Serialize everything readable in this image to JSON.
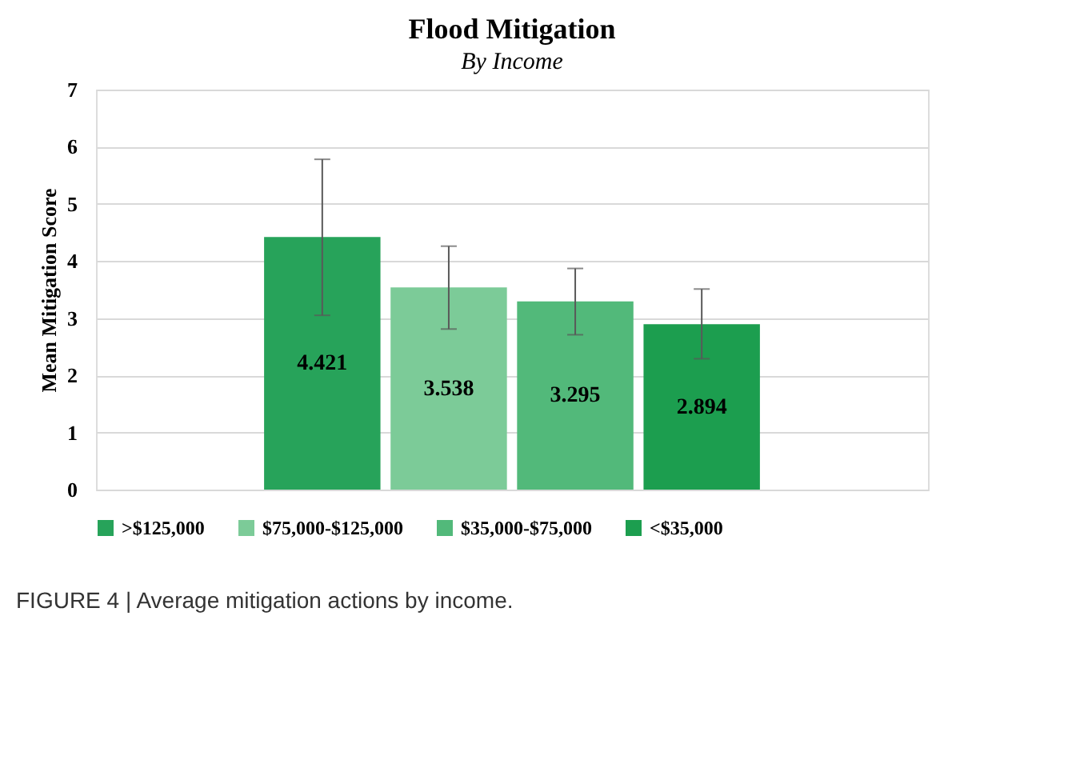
{
  "chart_data": {
    "type": "bar",
    "title": "Flood Mitigation",
    "subtitle": "By Income",
    "ylabel": "Mean Mitigation Score",
    "categories": [
      null
    ],
    "series": [
      {
        "name": ">$125,000",
        "color": "#27a35a",
        "values": [
          4.421
        ],
        "errors": [
          [
            3.05,
            5.78
          ]
        ]
      },
      {
        "name": "$75,000-$125,000",
        "color": "#7ccb98",
        "values": [
          3.538
        ],
        "errors": [
          [
            2.81,
            4.26
          ]
        ]
      },
      {
        "name": "$35,000-$75,000",
        "color": "#52b97a",
        "values": [
          3.295
        ],
        "errors": [
          [
            2.71,
            3.87
          ]
        ]
      },
      {
        "name": "<$35,000",
        "color": "#1c9e4f",
        "values": [
          2.894
        ],
        "errors": [
          [
            2.29,
            3.51
          ]
        ]
      }
    ],
    "data_labels": true,
    "ylim": [
      0,
      7
    ],
    "yticks": [
      0,
      1,
      2,
      3,
      4,
      5,
      6,
      7
    ],
    "grid": "y",
    "legend": "bottom",
    "tick_labels": "y",
    "annotations": [
      "FIGURE 4 | Average mitigation actions by income."
    ]
  }
}
